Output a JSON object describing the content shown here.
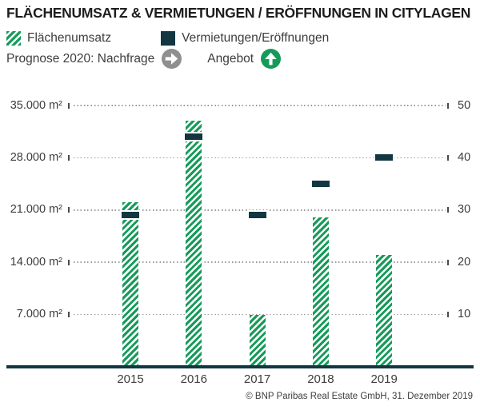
{
  "title": "FLÄCHENUMSATZ & VERMIETUNGEN / ERÖFFNUNGEN IN CITYLAGEN",
  "legend": {
    "flaechenumsatz_label": "Flächenumsatz",
    "vermietungen_label": "Vermietungen/Eröffnungen"
  },
  "prognose": {
    "label": "Prognose 2020: Nachfrage",
    "angebot_label": "Angebot",
    "nachfrage_icon": "arrow-right-circle",
    "angebot_icon": "arrow-up-circle",
    "nachfrage_color": "#8f8f8f",
    "angebot_color": "#169a5a"
  },
  "chart_data": {
    "type": "bar",
    "categories": [
      "2015",
      "2016",
      "2017",
      "2018",
      "2019"
    ],
    "series": [
      {
        "name": "Flächenumsatz",
        "type": "bar",
        "axis": "left",
        "values": [
          22000,
          33000,
          7000,
          20000,
          15000
        ]
      },
      {
        "name": "Vermietungen/Eröffnungen",
        "type": "marker",
        "axis": "right",
        "values": [
          29,
          44,
          29,
          35,
          40
        ]
      }
    ],
    "left_axis": {
      "label_suffix": "m²",
      "tick_labels": [
        "35.000 m²",
        "28.000 m²",
        "21.000 m²",
        "14.000 m²",
        "7.000 m²"
      ],
      "tick_values": [
        35000,
        28000,
        21000,
        14000,
        7000
      ],
      "range": [
        0,
        35000
      ]
    },
    "right_axis": {
      "tick_labels": [
        "50",
        "40",
        "30",
        "20",
        "10"
      ],
      "tick_values": [
        50,
        40,
        30,
        20,
        10
      ],
      "range": [
        0,
        50
      ]
    },
    "grid": "horizontal dotted",
    "legend_position": "top",
    "colors": {
      "bar_hatch": "#169a5a",
      "marker": "#123741",
      "baseline": "#123741",
      "grid": "#9b9b9b"
    }
  },
  "footer": {
    "copyright": "© BNP Paribas Real Estate GmbH, 31. Dezember 2019"
  }
}
